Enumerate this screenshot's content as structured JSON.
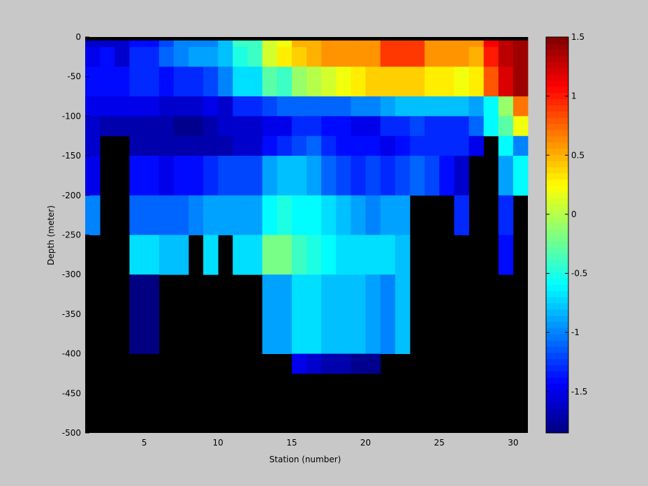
{
  "chart_data": {
    "type": "heatmap",
    "title": "",
    "xlabel": "Station (number)",
    "ylabel": "Depth (meter)",
    "xlim": [
      1,
      31
    ],
    "ylim": [
      -500,
      0
    ],
    "xticks": [
      5,
      10,
      15,
      20,
      25,
      30
    ],
    "yticks": [
      0,
      -50,
      -100,
      -150,
      -200,
      -250,
      -300,
      -350,
      -400,
      -450,
      -500
    ],
    "colorbar": {
      "clim": [
        -1.85,
        1.5
      ],
      "ticks": [
        1.5,
        1,
        0.5,
        0,
        -0.5,
        -1,
        -1.5
      ],
      "colormap": "jet",
      "background_no_data": "#000000"
    },
    "stations": [
      1,
      2,
      3,
      4,
      5,
      6,
      7,
      8,
      9,
      10,
      11,
      12,
      13,
      14,
      15,
      16,
      17,
      18,
      19,
      20,
      21,
      22,
      23,
      24,
      25,
      26,
      27,
      28,
      29,
      30
    ],
    "depth_top_of_rows": [
      0,
      -12.5,
      -37.5,
      -75,
      -100,
      -125,
      -150,
      -200,
      -250,
      -300,
      -400
    ],
    "values": [
      [
        -1.6,
        -1.6,
        -1.6,
        -1.4,
        -1.4,
        -1.2,
        -1.0,
        -1.0,
        -1.0,
        -0.8,
        -0.4,
        -0.4,
        0.1,
        0.2,
        0.5,
        0.5,
        0.6,
        0.6,
        0.6,
        0.6,
        0.9,
        0.9,
        0.9,
        0.6,
        0.6,
        0.6,
        0.6,
        1.1,
        1.3,
        1.4
      ],
      [
        -1.5,
        -1.4,
        -1.6,
        -1.3,
        -1.3,
        -1.1,
        -1.0,
        -0.9,
        -0.9,
        -0.8,
        -0.5,
        -0.4,
        0.1,
        0.3,
        0.4,
        0.5,
        0.6,
        0.6,
        0.6,
        0.6,
        0.9,
        0.9,
        0.9,
        0.6,
        0.6,
        0.6,
        0.5,
        1.0,
        1.3,
        1.4
      ],
      [
        -1.4,
        -1.4,
        -1.4,
        -1.3,
        -1.3,
        -1.4,
        -1.3,
        -1.3,
        -1.2,
        -1.0,
        -0.7,
        -0.7,
        -0.3,
        -0.4,
        -0.1,
        0.0,
        0.1,
        0.2,
        0.3,
        0.4,
        0.4,
        0.4,
        0.4,
        0.3,
        0.3,
        0.2,
        0.3,
        0.8,
        1.2,
        1.4
      ],
      [
        -1.5,
        -1.5,
        -1.5,
        -1.5,
        -1.5,
        -1.6,
        -1.6,
        -1.6,
        -1.5,
        -1.6,
        -1.3,
        -1.3,
        -1.2,
        -1.1,
        -1.1,
        -1.1,
        -1.1,
        -1.1,
        -1.0,
        -1.0,
        -0.9,
        -0.8,
        -0.8,
        -0.8,
        -0.8,
        -0.8,
        -0.9,
        -0.6,
        -0.1,
        0.7
      ],
      [
        -1.6,
        -1.7,
        -1.7,
        -1.7,
        -1.7,
        -1.7,
        -1.8,
        -1.8,
        -1.7,
        -1.6,
        -1.6,
        -1.6,
        -1.5,
        -1.5,
        -1.3,
        -1.3,
        -1.4,
        -1.4,
        -1.5,
        -1.5,
        -1.3,
        -1.3,
        -1.2,
        -1.3,
        -1.3,
        -1.3,
        -1.1,
        -0.6,
        -0.3,
        0.2
      ],
      [
        -1.6,
        null,
        null,
        -1.7,
        -1.7,
        -1.7,
        -1.7,
        -1.7,
        -1.7,
        -1.7,
        -1.6,
        -1.6,
        -1.4,
        -1.3,
        -1.2,
        -1.1,
        -1.3,
        -1.4,
        -1.4,
        -1.4,
        -1.5,
        -1.4,
        -1.3,
        -1.3,
        -1.3,
        -1.3,
        -1.5,
        null,
        -0.6,
        -1.0
      ],
      [
        -1.5,
        null,
        null,
        -1.4,
        -1.4,
        -1.5,
        -1.4,
        -1.4,
        -1.3,
        -1.2,
        -1.2,
        -1.2,
        -0.9,
        -0.8,
        -0.8,
        -0.9,
        -1.1,
        -1.2,
        -1.3,
        -1.2,
        -1.3,
        -1.2,
        -1.1,
        -1.2,
        -1.4,
        -1.6,
        null,
        null,
        -0.9,
        -0.6
      ],
      [
        -1.0,
        null,
        null,
        -1.1,
        -1.1,
        -1.1,
        -1.1,
        -1.0,
        -0.9,
        -0.9,
        -0.9,
        -0.9,
        -0.6,
        -0.5,
        -0.6,
        -0.6,
        -0.7,
        -0.8,
        -0.9,
        -1.0,
        -0.9,
        -0.9,
        null,
        null,
        null,
        -1.3,
        null,
        null,
        -1.3,
        null
      ],
      [
        null,
        null,
        null,
        -0.7,
        -0.7,
        -0.8,
        -0.8,
        null,
        -0.7,
        null,
        -0.7,
        -0.7,
        -0.2,
        -0.2,
        -0.4,
        -0.5,
        -0.6,
        -0.7,
        -0.7,
        -0.7,
        -0.7,
        -0.8,
        null,
        null,
        null,
        null,
        null,
        null,
        -1.4,
        null
      ],
      [
        null,
        null,
        null,
        -1.85,
        -1.85,
        null,
        null,
        null,
        null,
        null,
        null,
        null,
        -0.9,
        -0.9,
        -0.7,
        -0.7,
        -0.8,
        -0.8,
        -0.8,
        -0.9,
        -1.0,
        -0.8,
        null,
        null,
        null,
        null,
        null,
        null,
        null,
        null
      ],
      [
        null,
        null,
        null,
        null,
        null,
        null,
        null,
        null,
        null,
        null,
        null,
        null,
        null,
        null,
        -1.5,
        -1.6,
        -1.7,
        -1.7,
        -1.8,
        -1.8,
        null,
        null,
        null,
        null,
        null,
        null,
        null,
        null,
        null,
        null
      ]
    ]
  }
}
